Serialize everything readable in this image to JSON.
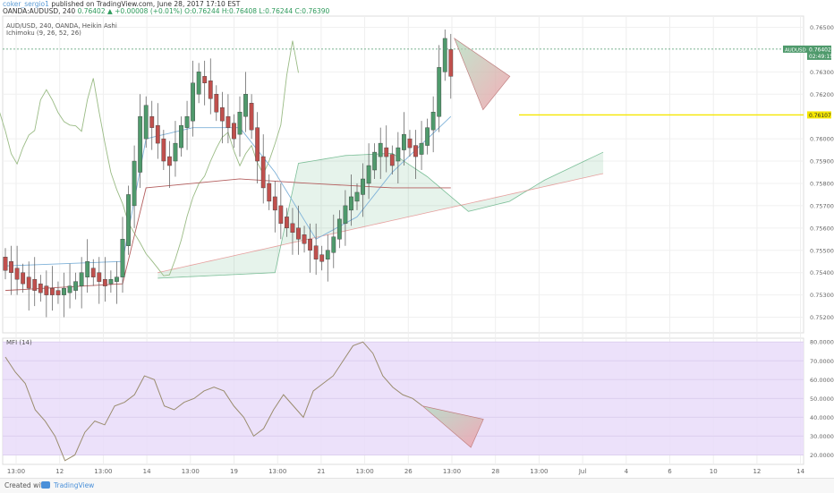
{
  "header": {
    "author": "coker_sergio1",
    "published": "published on TradingView.com, June 28, 2017 17:10 EST",
    "symbol": "OANDA:AUDUSD, 240",
    "last": "0.76402",
    "change": "▲ +0.00008 (+0.01%)",
    "ohlc": "O:0.76244 H:0.76408 L:0.76244 C:0.76390"
  },
  "instrument": {
    "title": "AUD/USD, 240, OANDA, Heikin Ashi",
    "ichimoku": "Ichimoku (9, 26, 52, 26)",
    "mfi": "MFI (14)"
  },
  "axis_badges": {
    "symbol_tag": "AUDUSD",
    "price": "0.76402",
    "countdown": "02:49:15",
    "yellow_level": "0.76107"
  },
  "footer": {
    "created_with": "Created with",
    "brand": "TradingView"
  },
  "colors": {
    "bull": "#4f9a6c",
    "bear": "#c0504d",
    "kumo_bull": "#2e9a5b",
    "kumo_bear": "#e06666",
    "tenkan": "#7fb2d9",
    "kijun": "#b45f5f",
    "chikou": "#9abb85",
    "yellow_line": "#f5e600",
    "mfi_line": "#9a8c6e",
    "mfi_band": "#e9dcf9"
  },
  "chart_data": [
    {
      "type": "candlestick",
      "title": "AUD/USD, 240, OANDA, Heikin Ashi",
      "ylim": [
        0.7513,
        0.7655
      ],
      "y_ticks": [
        "0.76500",
        "0.76300",
        "0.76200",
        "0.76000",
        "0.75900",
        "0.75800",
        "0.75700",
        "0.75600",
        "0.75500",
        "0.75400",
        "0.75300",
        "0.75200"
      ],
      "x_ticks": [
        "13:00",
        "12",
        "13:00",
        "14",
        "13:00",
        "19",
        "13:00",
        "21",
        "13:00",
        "26",
        "13:00",
        "28",
        "13:00",
        "Jul",
        "4",
        "6",
        "10",
        "12",
        "14"
      ],
      "yellow_line": 0.76107,
      "last_price": 0.76402,
      "candles_heikin_ashi_OC": [
        [
          0.7547,
          0.7541
        ],
        [
          0.7545,
          0.754
        ],
        [
          0.7542,
          0.7537
        ],
        [
          0.754,
          0.7535
        ],
        [
          0.7538,
          0.7533
        ],
        [
          0.7537,
          0.7532
        ],
        [
          0.7535,
          0.7531
        ],
        [
          0.7534,
          0.753
        ],
        [
          0.7533,
          0.753
        ],
        [
          0.7532,
          0.753
        ],
        [
          0.753,
          0.7533
        ],
        [
          0.7531,
          0.7534
        ],
        [
          0.7532,
          0.7536
        ],
        [
          0.7534,
          0.754
        ],
        [
          0.7538,
          0.7545
        ],
        [
          0.7542,
          0.7538
        ],
        [
          0.754,
          0.7536
        ],
        [
          0.7537,
          0.7534
        ],
        [
          0.7535,
          0.7537
        ],
        [
          0.7536,
          0.7538
        ],
        [
          0.7538,
          0.7555
        ],
        [
          0.7552,
          0.7575
        ],
        [
          0.757,
          0.759
        ],
        [
          0.7585,
          0.761
        ],
        [
          0.76,
          0.7615
        ],
        [
          0.761,
          0.7605
        ],
        [
          0.7606,
          0.7598
        ],
        [
          0.76,
          0.759
        ],
        [
          0.7592,
          0.7588
        ],
        [
          0.759,
          0.7598
        ],
        [
          0.7596,
          0.7606
        ],
        [
          0.7605,
          0.761
        ],
        [
          0.7608,
          0.7625
        ],
        [
          0.762,
          0.763
        ],
        [
          0.7628,
          0.7625
        ],
        [
          0.7626,
          0.7618
        ],
        [
          0.762,
          0.7612
        ],
        [
          0.7614,
          0.7608
        ],
        [
          0.761,
          0.7605
        ],
        [
          0.7607,
          0.76
        ],
        [
          0.7602,
          0.7612
        ],
        [
          0.761,
          0.762
        ],
        [
          0.7616,
          0.7604
        ],
        [
          0.7605,
          0.759
        ],
        [
          0.7592,
          0.7578
        ],
        [
          0.758,
          0.7572
        ],
        [
          0.7574,
          0.7568
        ],
        [
          0.757,
          0.7562
        ],
        [
          0.7565,
          0.756
        ],
        [
          0.7562,
          0.7558
        ],
        [
          0.756,
          0.7555
        ],
        [
          0.7557,
          0.7553
        ],
        [
          0.7555,
          0.755
        ],
        [
          0.7552,
          0.7546
        ],
        [
          0.7548,
          0.7545
        ],
        [
          0.7546,
          0.755
        ],
        [
          0.7549,
          0.7556
        ],
        [
          0.7555,
          0.7564
        ],
        [
          0.7562,
          0.757
        ],
        [
          0.7568,
          0.7574
        ],
        [
          0.7572,
          0.7576
        ],
        [
          0.7575,
          0.7582
        ],
        [
          0.758,
          0.7588
        ],
        [
          0.7586,
          0.7594
        ],
        [
          0.7592,
          0.7598
        ],
        [
          0.7596,
          0.7592
        ],
        [
          0.7593,
          0.7588
        ],
        [
          0.759,
          0.7596
        ],
        [
          0.7595,
          0.7602
        ],
        [
          0.76,
          0.7596
        ],
        [
          0.7597,
          0.7592
        ],
        [
          0.7593,
          0.7598
        ],
        [
          0.7597,
          0.7605
        ],
        [
          0.7604,
          0.7612
        ],
        [
          0.761,
          0.7632
        ],
        [
          0.763,
          0.7645
        ],
        [
          0.764,
          0.7628
        ]
      ],
      "ichimoku": {
        "tenkan_endpoints": [
          [
            0,
            0.7543
          ],
          [
            20,
            0.7545
          ],
          [
            24,
            0.76
          ],
          [
            32,
            0.7605
          ],
          [
            40,
            0.7605
          ],
          [
            46,
            0.7585
          ],
          [
            53,
            0.7555
          ],
          [
            60,
            0.7565
          ],
          [
            66,
            0.7585
          ],
          [
            76,
            0.761
          ]
        ],
        "kijun_endpoints": [
          [
            0,
            0.7532
          ],
          [
            20,
            0.7535
          ],
          [
            24,
            0.7578
          ],
          [
            40,
            0.7582
          ],
          [
            52,
            0.758
          ],
          [
            66,
            0.7578
          ],
          [
            76,
            0.7578
          ]
        ],
        "kumo_projection_end": [
          0.7601,
          0.7596
        ]
      }
    },
    {
      "type": "line",
      "title": "MFI (14)",
      "ylim": [
        15,
        82
      ],
      "y_ticks": [
        "80.0000",
        "70.0000",
        "60.0000",
        "50.0000",
        "40.0000",
        "30.0000",
        "20.0000"
      ],
      "band": [
        20,
        80
      ],
      "values": [
        72,
        64,
        58,
        44,
        38,
        30,
        17,
        20,
        32,
        38,
        36,
        46,
        48,
        52,
        62,
        60,
        46,
        44,
        48,
        50,
        54,
        56,
        54,
        46,
        40,
        30,
        34,
        44,
        52,
        46,
        40,
        54,
        58,
        62,
        70,
        78,
        80,
        74,
        62,
        56,
        52,
        50,
        46
      ],
      "projection_end": 39
    }
  ]
}
